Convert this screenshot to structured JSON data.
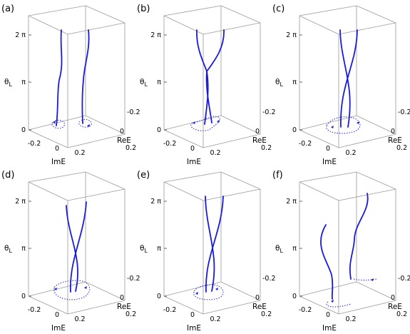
{
  "figure": {
    "axis": {
      "z_label": "θ",
      "z_label_sub": "L",
      "z_ticks": [
        "2 π",
        "π",
        "0"
      ],
      "x_label": "ImE",
      "x_ticks": [
        "-0.2",
        "0",
        "0.2"
      ],
      "y_label": "ReE",
      "y_ticks": [
        "-0.2",
        "0",
        "0.2"
      ]
    },
    "panels": [
      {
        "label": "(a)",
        "curve_color": "#1a1ae0",
        "topology": "separate"
      },
      {
        "label": "(b)",
        "curve_color": "#1a1ae0",
        "topology": "touching"
      },
      {
        "label": "(c)",
        "curve_color": "#1a1ae0",
        "topology": "braided"
      },
      {
        "label": "(d)",
        "curve_color": "#1a1ae0",
        "topology": "braided"
      },
      {
        "label": "(e)",
        "curve_color": "#1a1ae0",
        "topology": "braided"
      },
      {
        "label": "(f)",
        "curve_color": "#1a1ae0",
        "topology": "separate"
      }
    ]
  }
}
